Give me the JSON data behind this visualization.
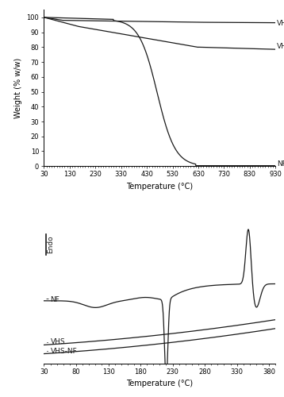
{
  "tga_xlim": [
    30,
    930
  ],
  "tga_ylim": [
    0,
    105
  ],
  "tga_xticks": [
    30,
    130,
    230,
    330,
    430,
    530,
    630,
    730,
    830,
    930
  ],
  "tga_yticks": [
    0,
    10,
    20,
    30,
    40,
    50,
    60,
    70,
    80,
    90,
    100
  ],
  "tga_xlabel": "Temperature (°C)",
  "tga_ylabel": "Weight (% w/w)",
  "dsc_xlim": [
    30,
    390
  ],
  "dsc_xticks": [
    30,
    80,
    130,
    180,
    230,
    280,
    330,
    380
  ],
  "dsc_xlabel": "Temperature (°C)",
  "color": "#1a1a1a",
  "bg_color": "#ffffff",
  "linewidth": 0.9
}
